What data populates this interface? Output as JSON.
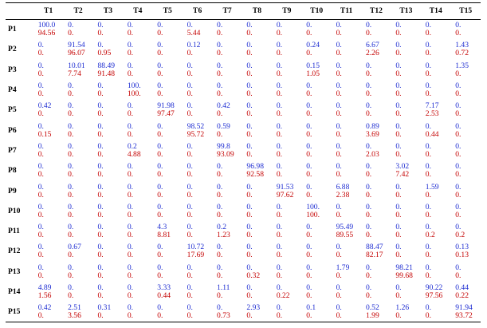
{
  "colors": {
    "top_value": "#1c2bd1",
    "bottom_value": "#c40000"
  },
  "columns": [
    "T1",
    "T2",
    "T3",
    "T4",
    "T5",
    "T6",
    "T7",
    "T8",
    "T9",
    "T10",
    "T11",
    "T12",
    "T13",
    "T14",
    "T15"
  ],
  "rows": [
    {
      "label": "P1",
      "top": [
        "100.0",
        "0.",
        "0.",
        "0.",
        "0.",
        "0.",
        "0.",
        "0.",
        "0.",
        "0.",
        "0.",
        "0.",
        "0.",
        "0.",
        "0."
      ],
      "bottom": [
        "94.56",
        "0.",
        "0.",
        "0.",
        "0.",
        "5.44",
        "0.",
        "0.",
        "0.",
        "0.",
        "0.",
        "0.",
        "0.",
        "0.",
        "0."
      ]
    },
    {
      "label": "P2",
      "top": [
        "0.",
        "91.54",
        "0.",
        "0.",
        "0.",
        "0.12",
        "0.",
        "0.",
        "0.",
        "0.24",
        "0.",
        "6.67",
        "0.",
        "0.",
        "1.43"
      ],
      "bottom": [
        "0.",
        "96.07",
        "0.95",
        "0.",
        "0.",
        "0.",
        "0.",
        "0.",
        "0.",
        "0.",
        "0.",
        "2.26",
        "0.",
        "0.",
        "0.72"
      ]
    },
    {
      "label": "P3",
      "top": [
        "0.",
        "10.01",
        "88.49",
        "0.",
        "0.",
        "0.",
        "0.",
        "0.",
        "0.",
        "0.15",
        "0.",
        "0.",
        "0.",
        "0.",
        "1.35"
      ],
      "bottom": [
        "0.",
        "7.74",
        "91.48",
        "0.",
        "0.",
        "0.",
        "0.",
        "0.",
        "0.",
        "1.05",
        "0.",
        "0.",
        "0.",
        "0.",
        "0."
      ]
    },
    {
      "label": "P4",
      "top": [
        "0.",
        "0.",
        "0.",
        "100.",
        "0.",
        "0.",
        "0.",
        "0.",
        "0.",
        "0.",
        "0.",
        "0.",
        "0.",
        "0.",
        "0."
      ],
      "bottom": [
        "0.",
        "0.",
        "0.",
        "100.",
        "0.",
        "0.",
        "0.",
        "0.",
        "0.",
        "0.",
        "0.",
        "0.",
        "0.",
        "0.",
        "0."
      ]
    },
    {
      "label": "P5",
      "top": [
        "0.42",
        "0.",
        "0.",
        "0.",
        "91.98",
        "0.",
        "0.42",
        "0.",
        "0.",
        "0.",
        "0.",
        "0.",
        "0.",
        "7.17",
        "0."
      ],
      "bottom": [
        "0.",
        "0.",
        "0.",
        "0.",
        "97.47",
        "0.",
        "0.",
        "0.",
        "0.",
        "0.",
        "0.",
        "0.",
        "0.",
        "2.53",
        "0."
      ]
    },
    {
      "label": "P6",
      "top": [
        "0.",
        "0.",
        "0.",
        "0.",
        "0.",
        "98.52",
        "0.59",
        "0.",
        "0.",
        "0.",
        "0.",
        "0.89",
        "0.",
        "0.",
        "0."
      ],
      "bottom": [
        "0.15",
        "0.",
        "0.",
        "0.",
        "0.",
        "95.72",
        "0.",
        "0.",
        "0.",
        "0.",
        "0.",
        "3.69",
        "0.",
        "0.44",
        "0."
      ]
    },
    {
      "label": "P7",
      "top": [
        "0.",
        "0.",
        "0.",
        "0.2",
        "0.",
        "0.",
        "99.8",
        "0.",
        "0.",
        "0.",
        "0.",
        "0.",
        "0.",
        "0.",
        "0."
      ],
      "bottom": [
        "0.",
        "0.",
        "0.",
        "4.88",
        "0.",
        "0.",
        "93.09",
        "0.",
        "0.",
        "0.",
        "0.",
        "2.03",
        "0.",
        "0.",
        "0."
      ]
    },
    {
      "label": "P8",
      "top": [
        "0.",
        "0.",
        "0.",
        "0.",
        "0.",
        "0.",
        "0.",
        "96.98",
        "0.",
        "0.",
        "0.",
        "0.",
        "3.02",
        "0.",
        "0."
      ],
      "bottom": [
        "0.",
        "0.",
        "0.",
        "0.",
        "0.",
        "0.",
        "0.",
        "92.58",
        "0.",
        "0.",
        "0.",
        "0.",
        "7.42",
        "0.",
        "0."
      ]
    },
    {
      "label": "P9",
      "top": [
        "0.",
        "0.",
        "0.",
        "0.",
        "0.",
        "0.",
        "0.",
        "0.",
        "91.53",
        "0.",
        "6.88",
        "0.",
        "0.",
        "1.59",
        "0."
      ],
      "bottom": [
        "0.",
        "0.",
        "0.",
        "0.",
        "0.",
        "0.",
        "0.",
        "0.",
        "97.62",
        "0.",
        "2.38",
        "0.",
        "0.",
        "0.",
        "0."
      ]
    },
    {
      "label": "P10",
      "top": [
        "0.",
        "0.",
        "0.",
        "0.",
        "0.",
        "0.",
        "0.",
        "0.",
        "0.",
        "100.",
        "0.",
        "0.",
        "0.",
        "0.",
        "0."
      ],
      "bottom": [
        "0.",
        "0.",
        "0.",
        "0.",
        "0.",
        "0.",
        "0.",
        "0.",
        "0.",
        "100.",
        "0.",
        "0.",
        "0.",
        "0.",
        "0."
      ]
    },
    {
      "label": "P11",
      "top": [
        "0.",
        "0.",
        "0.",
        "0.",
        "4.3",
        "0.",
        "0.2",
        "0.",
        "0.",
        "0.",
        "95.49",
        "0.",
        "0.",
        "0.",
        "0."
      ],
      "bottom": [
        "0.",
        "0.",
        "0.",
        "0.",
        "8.81",
        "0.",
        "1.23",
        "0.",
        "0.",
        "0.",
        "89.55",
        "0.",
        "0.",
        "0.2",
        "0.2"
      ]
    },
    {
      "label": "P12",
      "top": [
        "0.",
        "0.67",
        "0.",
        "0.",
        "0.",
        "10.72",
        "0.",
        "0.",
        "0.",
        "0.",
        "0.",
        "88.47",
        "0.",
        "0.",
        "0.13"
      ],
      "bottom": [
        "0.",
        "0.",
        "0.",
        "0.",
        "0.",
        "17.69",
        "0.",
        "0.",
        "0.",
        "0.",
        "0.",
        "82.17",
        "0.",
        "0.",
        "0.13"
      ]
    },
    {
      "label": "P13",
      "top": [
        "0.",
        "0.",
        "0.",
        "0.",
        "0.",
        "0.",
        "0.",
        "0.",
        "0.",
        "0.",
        "1.79",
        "0.",
        "98.21",
        "0.",
        "0."
      ],
      "bottom": [
        "0.",
        "0.",
        "0.",
        "0.",
        "0.",
        "0.",
        "0.",
        "0.32",
        "0.",
        "0.",
        "0.",
        "0.",
        "99.68",
        "0.",
        "0."
      ]
    },
    {
      "label": "P14",
      "top": [
        "4.89",
        "0.",
        "0.",
        "0.",
        "3.33",
        "0.",
        "1.11",
        "0.",
        "0.",
        "0.",
        "0.",
        "0.",
        "0.",
        "90.22",
        "0.44"
      ],
      "bottom": [
        "1.56",
        "0.",
        "0.",
        "0.",
        "0.44",
        "0.",
        "0.",
        "0.",
        "0.22",
        "0.",
        "0.",
        "0.",
        "0.",
        "97.56",
        "0.22"
      ]
    },
    {
      "label": "P15",
      "top": [
        "0.42",
        "2.51",
        "0.31",
        "0.",
        "0.",
        "0.",
        "0.",
        "2.93",
        "0.",
        "0.1",
        "0.",
        "0.52",
        "1.26",
        "0.",
        "91.94"
      ],
      "bottom": [
        "0.",
        "3.56",
        "0.",
        "0.",
        "0.",
        "0.",
        "0.73",
        "0.",
        "0.",
        "0.",
        "0.",
        "1.99",
        "0.",
        "0.",
        "93.72"
      ]
    }
  ]
}
